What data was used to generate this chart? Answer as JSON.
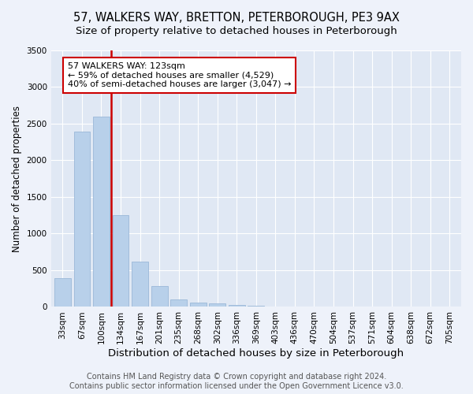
{
  "title": "57, WALKERS WAY, BRETTON, PETERBOROUGH, PE3 9AX",
  "subtitle": "Size of property relative to detached houses in Peterborough",
  "xlabel": "Distribution of detached houses by size in Peterborough",
  "ylabel": "Number of detached properties",
  "categories": [
    "33sqm",
    "67sqm",
    "100sqm",
    "134sqm",
    "167sqm",
    "201sqm",
    "235sqm",
    "268sqm",
    "302sqm",
    "336sqm",
    "369sqm",
    "403sqm",
    "436sqm",
    "470sqm",
    "504sqm",
    "537sqm",
    "571sqm",
    "604sqm",
    "638sqm",
    "672sqm",
    "705sqm"
  ],
  "values": [
    390,
    2390,
    2600,
    1250,
    620,
    280,
    100,
    55,
    45,
    25,
    20,
    10,
    5,
    3,
    2,
    1,
    1,
    1,
    0,
    0,
    0
  ],
  "bar_color": "#b8d0ea",
  "bar_edge_color": "#9ab8d8",
  "vline_x_index": 2.5,
  "vline_color": "#cc0000",
  "annotation_text": "57 WALKERS WAY: 123sqm\n← 59% of detached houses are smaller (4,529)\n40% of semi-detached houses are larger (3,047) →",
  "annotation_box_color": "#cc0000",
  "ylim": [
    0,
    3500
  ],
  "yticks": [
    0,
    500,
    1000,
    1500,
    2000,
    2500,
    3000,
    3500
  ],
  "background_color": "#eef2fa",
  "plot_background": "#e0e8f4",
  "footer": "Contains HM Land Registry data © Crown copyright and database right 2024.\nContains public sector information licensed under the Open Government Licence v3.0.",
  "title_fontsize": 10.5,
  "subtitle_fontsize": 9.5,
  "xlabel_fontsize": 9.5,
  "ylabel_fontsize": 8.5,
  "tick_fontsize": 7.5,
  "footer_fontsize": 7.0,
  "annot_fontsize": 8.0
}
